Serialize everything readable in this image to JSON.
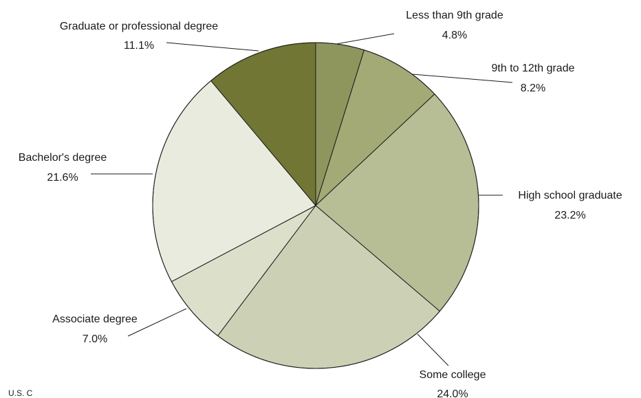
{
  "chart_data": {
    "type": "pie",
    "title": "",
    "slices": [
      {
        "label": "Less than 9th grade",
        "value": 4.8,
        "value_label": "4.8%",
        "color": "#8e965e"
      },
      {
        "label": "9th to 12th grade",
        "value": 8.2,
        "value_label": "8.2%",
        "color": "#a3aa76"
      },
      {
        "label": "High school graduate",
        "value": 23.2,
        "value_label": "23.2%",
        "color": "#b7bd95"
      },
      {
        "label": "Some college",
        "value": 24.0,
        "value_label": "24.0%",
        "color": "#ccd1b5"
      },
      {
        "label": "Associate degree",
        "value": 7.0,
        "value_label": "7.0%",
        "color": "#dcdfca"
      },
      {
        "label": "Bachelor's degree",
        "value": 21.6,
        "value_label": "21.6%",
        "color": "#e9ebde"
      },
      {
        "label": "Graduate or professional degree",
        "value": 11.1,
        "value_label": "11.1%",
        "color": "#727634"
      }
    ]
  },
  "footer": {
    "source_text": "U.S. C"
  }
}
